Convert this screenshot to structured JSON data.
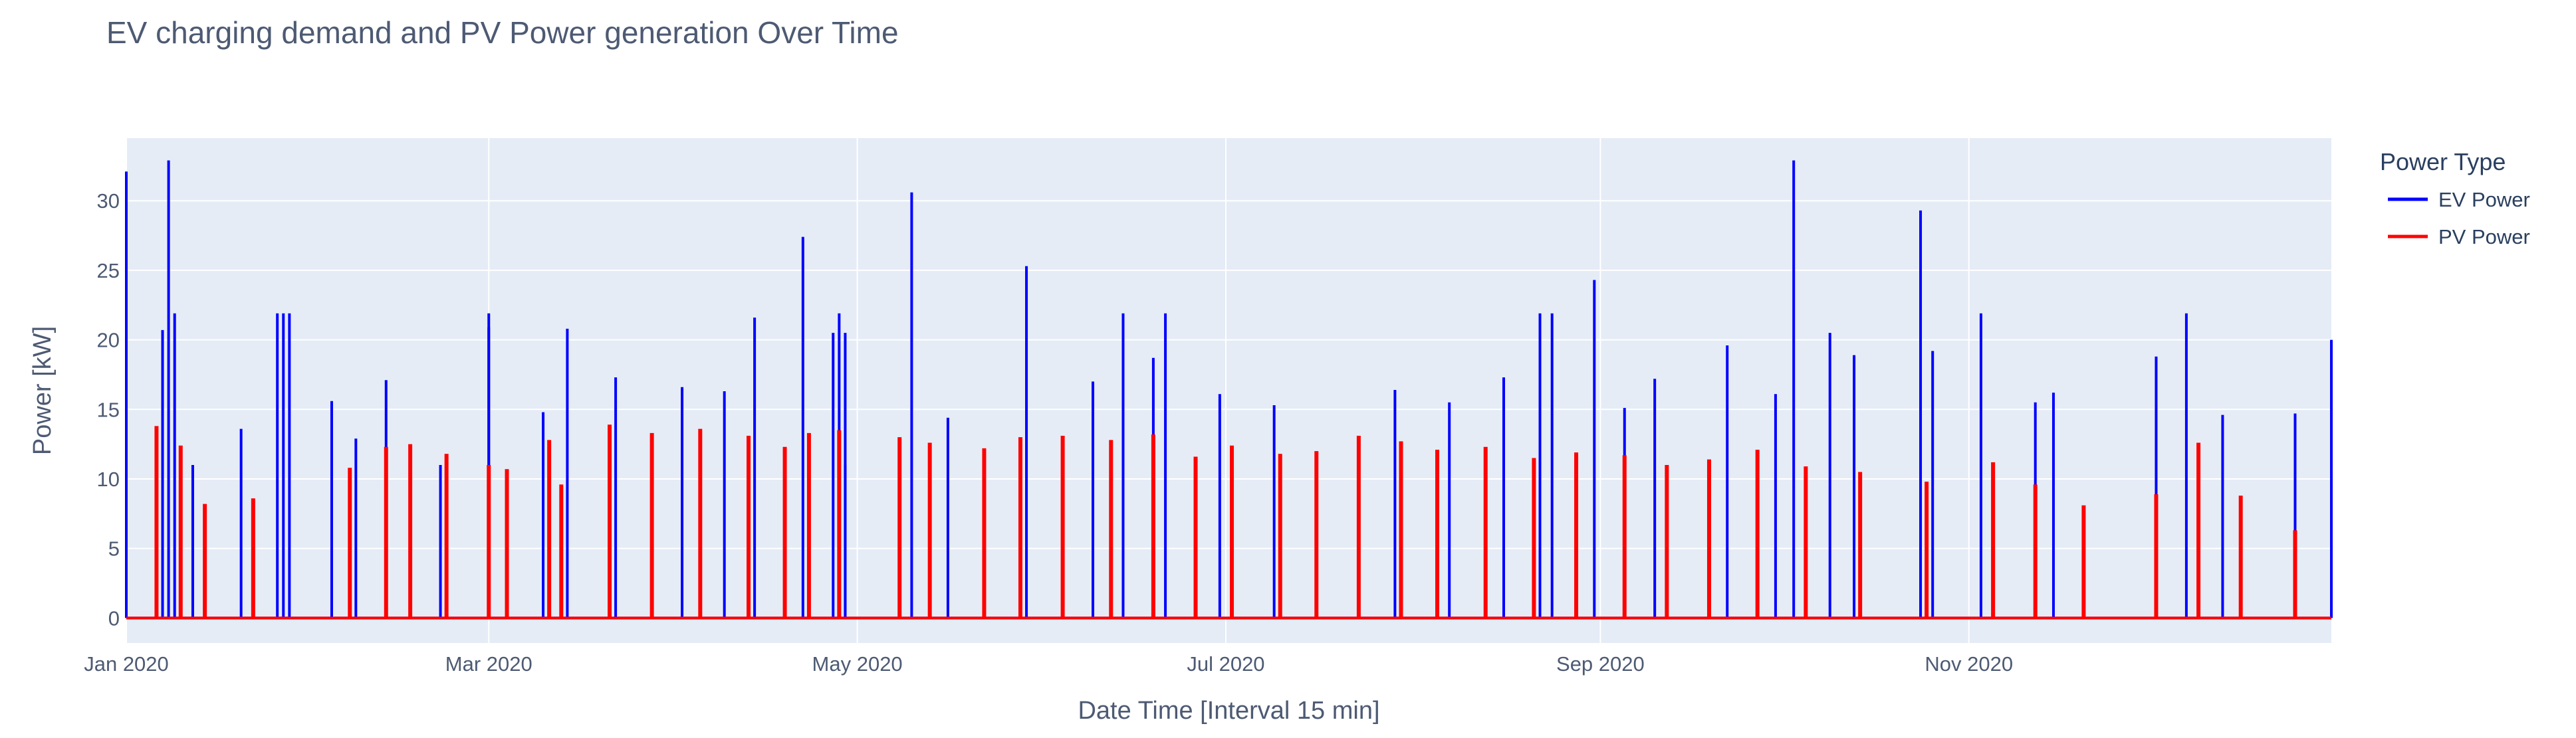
{
  "chart_data": {
    "type": "line",
    "title": "EV charging demand and PV Power generation Over Time",
    "xlabel": "Date Time [Interval 15 min]",
    "ylabel": "Power [kW]",
    "x_tick_labels": [
      "Jan 2020",
      "Mar 2020",
      "May 2020",
      "Jul 2020",
      "Sep 2020",
      "Nov 2020"
    ],
    "x_ticks": [
      "2020-01-01",
      "2020-03-01",
      "2020-05-01",
      "2020-07-01",
      "2020-09-01",
      "2020-11-01"
    ],
    "xlim": [
      "2020-01-01",
      "2020-12-31"
    ],
    "ylim": [
      -1.8,
      34.5
    ],
    "y_ticks": [
      0,
      5,
      10,
      15,
      20,
      25,
      30
    ],
    "grid": true,
    "legend": {
      "title": "Power Type",
      "position": "right"
    },
    "series": [
      {
        "name": "EV Power",
        "color": "#0000ff",
        "points": [
          [
            "2020-01-01",
            32.1
          ],
          [
            "2020-01-07",
            20.7
          ],
          [
            "2020-01-08",
            32.9
          ],
          [
            "2020-01-09",
            21.9
          ],
          [
            "2020-01-12",
            11.0
          ],
          [
            "2020-01-20",
            13.6
          ],
          [
            "2020-01-26",
            21.9
          ],
          [
            "2020-01-27",
            21.9
          ],
          [
            "2020-01-28",
            21.9
          ],
          [
            "2020-02-04",
            15.6
          ],
          [
            "2020-02-08",
            12.9
          ],
          [
            "2020-02-13",
            17.1
          ],
          [
            "2020-02-22",
            11.0
          ],
          [
            "2020-03-01",
            20.9
          ],
          [
            "2020-03-01",
            21.9
          ],
          [
            "2020-03-10",
            14.8
          ],
          [
            "2020-03-14",
            20.8
          ],
          [
            "2020-03-22",
            17.3
          ],
          [
            "2020-04-02",
            16.6
          ],
          [
            "2020-04-09",
            16.3
          ],
          [
            "2020-04-14",
            21.6
          ],
          [
            "2020-04-22",
            27.4
          ],
          [
            "2020-04-27",
            20.5
          ],
          [
            "2020-04-28",
            21.9
          ],
          [
            "2020-04-29",
            20.5
          ],
          [
            "2020-04-29",
            11.0
          ],
          [
            "2020-05-10",
            30.6
          ],
          [
            "2020-05-16",
            14.4
          ],
          [
            "2020-05-29",
            25.3
          ],
          [
            "2020-06-09",
            17.0
          ],
          [
            "2020-06-14",
            21.9
          ],
          [
            "2020-06-19",
            18.7
          ],
          [
            "2020-06-21",
            21.9
          ],
          [
            "2020-06-30",
            16.1
          ],
          [
            "2020-07-09",
            15.3
          ],
          [
            "2020-07-29",
            16.4
          ],
          [
            "2020-08-07",
            15.5
          ],
          [
            "2020-08-16",
            17.3
          ],
          [
            "2020-08-22",
            21.9
          ],
          [
            "2020-08-24",
            21.9
          ],
          [
            "2020-08-31",
            24.3
          ],
          [
            "2020-09-05",
            15.1
          ],
          [
            "2020-09-10",
            17.2
          ],
          [
            "2020-09-22",
            19.6
          ],
          [
            "2020-09-30",
            16.1
          ],
          [
            "2020-10-03",
            32.9
          ],
          [
            "2020-10-09",
            20.5
          ],
          [
            "2020-10-13",
            18.9
          ],
          [
            "2020-10-24",
            29.3
          ],
          [
            "2020-10-26",
            19.2
          ],
          [
            "2020-11-03",
            21.9
          ],
          [
            "2020-11-12",
            15.5
          ],
          [
            "2020-11-15",
            16.2
          ],
          [
            "2020-12-02",
            18.8
          ],
          [
            "2020-12-07",
            21.9
          ],
          [
            "2020-12-13",
            14.6
          ],
          [
            "2020-12-25",
            14.7
          ],
          [
            "2020-12-31",
            20.0
          ]
        ]
      },
      {
        "name": "PV Power",
        "color": "#ff0000",
        "points": [
          [
            "2020-01-06",
            13.8
          ],
          [
            "2020-01-10",
            12.4
          ],
          [
            "2020-01-14",
            8.2
          ],
          [
            "2020-01-22",
            8.6
          ],
          [
            "2020-02-07",
            10.8
          ],
          [
            "2020-02-13",
            12.3
          ],
          [
            "2020-02-17",
            12.5
          ],
          [
            "2020-02-23",
            11.8
          ],
          [
            "2020-03-01",
            11.0
          ],
          [
            "2020-03-04",
            10.7
          ],
          [
            "2020-03-11",
            12.8
          ],
          [
            "2020-03-13",
            9.6
          ],
          [
            "2020-03-21",
            13.9
          ],
          [
            "2020-03-28",
            13.3
          ],
          [
            "2020-04-05",
            13.6
          ],
          [
            "2020-04-13",
            13.1
          ],
          [
            "2020-04-19",
            12.3
          ],
          [
            "2020-04-23",
            13.3
          ],
          [
            "2020-04-28",
            13.5
          ],
          [
            "2020-05-08",
            13.0
          ],
          [
            "2020-05-13",
            12.6
          ],
          [
            "2020-05-22",
            12.2
          ],
          [
            "2020-05-28",
            13.0
          ],
          [
            "2020-06-04",
            13.1
          ],
          [
            "2020-06-12",
            12.8
          ],
          [
            "2020-06-19",
            13.2
          ],
          [
            "2020-06-26",
            11.6
          ],
          [
            "2020-07-02",
            12.4
          ],
          [
            "2020-07-10",
            11.8
          ],
          [
            "2020-07-16",
            12.0
          ],
          [
            "2020-07-23",
            13.1
          ],
          [
            "2020-07-30",
            12.7
          ],
          [
            "2020-08-05",
            12.1
          ],
          [
            "2020-08-13",
            12.3
          ],
          [
            "2020-08-21",
            11.5
          ],
          [
            "2020-08-28",
            11.9
          ],
          [
            "2020-09-05",
            11.7
          ],
          [
            "2020-09-12",
            11.0
          ],
          [
            "2020-09-19",
            11.4
          ],
          [
            "2020-09-27",
            12.1
          ],
          [
            "2020-10-05",
            10.9
          ],
          [
            "2020-10-14",
            10.5
          ],
          [
            "2020-10-25",
            9.8
          ],
          [
            "2020-11-05",
            11.2
          ],
          [
            "2020-11-12",
            9.6
          ],
          [
            "2020-11-20",
            8.1
          ],
          [
            "2020-12-02",
            8.9
          ],
          [
            "2020-12-09",
            12.6
          ],
          [
            "2020-12-16",
            8.8
          ],
          [
            "2020-12-25",
            6.3
          ]
        ]
      }
    ]
  }
}
